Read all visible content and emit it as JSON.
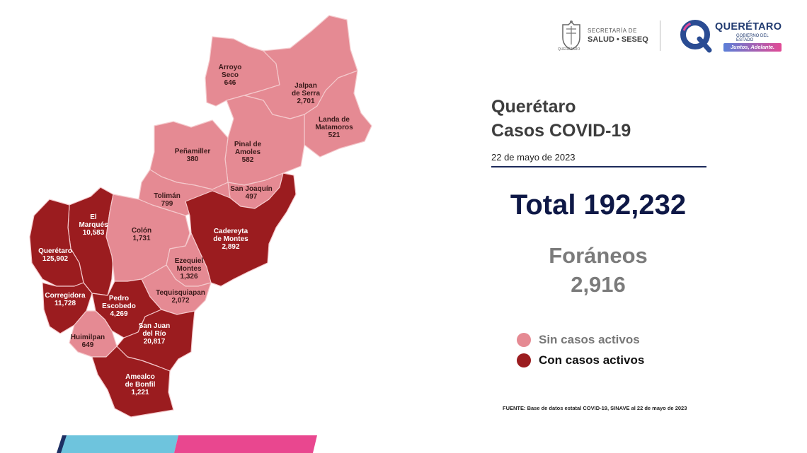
{
  "header": {
    "secretaria_line1": "SECRETARÍA DE",
    "secretaria_line2": "SALUD • SESEQ",
    "secretaria_sub": "QUERÉTARO",
    "qro_word": "QUERÉTARO",
    "qro_sub": "GOBIERNO DEL ESTADO",
    "qro_tagline": "Juntos, Adelante."
  },
  "title": {
    "line1": "Querétaro",
    "line2": "Casos COVID-19"
  },
  "date": "22 de mayo de 2023",
  "total": "Total 192,232",
  "foraneos": {
    "label": "Foráneos",
    "value": "2,916"
  },
  "legend": {
    "inactive": {
      "label": "Sin casos activos",
      "color": "#e58a93"
    },
    "active": {
      "label": "Con casos activos",
      "color": "#9b1c1f"
    }
  },
  "source": "FUENTE:  Base de datos estatal  COVID-19,  SINAVE  al 22 de mayo de 2023",
  "municipalities": [
    {
      "name": [
        "Arroyo",
        "Seco"
      ],
      "value": "646",
      "status": "inactive"
    },
    {
      "name": [
        "Jalpan",
        "de Serra"
      ],
      "value": "2,701",
      "status": "inactive"
    },
    {
      "name": [
        "Landa de",
        "Matamoros"
      ],
      "value": "521",
      "status": "inactive"
    },
    {
      "name": [
        "Pinal de",
        "Amoles"
      ],
      "value": "582",
      "status": "inactive"
    },
    {
      "name": [
        "Peñamiller"
      ],
      "value": "380",
      "status": "inactive"
    },
    {
      "name": [
        "San Joaquín"
      ],
      "value": "497",
      "status": "inactive"
    },
    {
      "name": [
        "Tolimán"
      ],
      "value": "799",
      "status": "inactive"
    },
    {
      "name": [
        "Cadereyta",
        "de Montes"
      ],
      "value": "2,892",
      "status": "active"
    },
    {
      "name": [
        "El",
        "Marqués"
      ],
      "value": "10,583",
      "status": "active"
    },
    {
      "name": [
        "Colón"
      ],
      "value": "1,731",
      "status": "inactive"
    },
    {
      "name": [
        "Querétaro"
      ],
      "value": "125,902",
      "status": "active"
    },
    {
      "name": [
        "Ezequiel",
        "Montes"
      ],
      "value": "1,326",
      "status": "inactive"
    },
    {
      "name": [
        "Tequisquiapan"
      ],
      "value": "2,072",
      "status": "inactive"
    },
    {
      "name": [
        "Corregidora"
      ],
      "value": "11,728",
      "status": "active"
    },
    {
      "name": [
        "Pedro",
        "Escobedo"
      ],
      "value": "4,269",
      "status": "active"
    },
    {
      "name": [
        "Huimilpan"
      ],
      "value": "649",
      "status": "inactive"
    },
    {
      "name": [
        "San Juan",
        "del Río"
      ],
      "value": "20,817",
      "status": "active"
    },
    {
      "name": [
        "Amealco",
        "de Bonfil"
      ],
      "value": "1,221",
      "status": "active"
    }
  ]
}
